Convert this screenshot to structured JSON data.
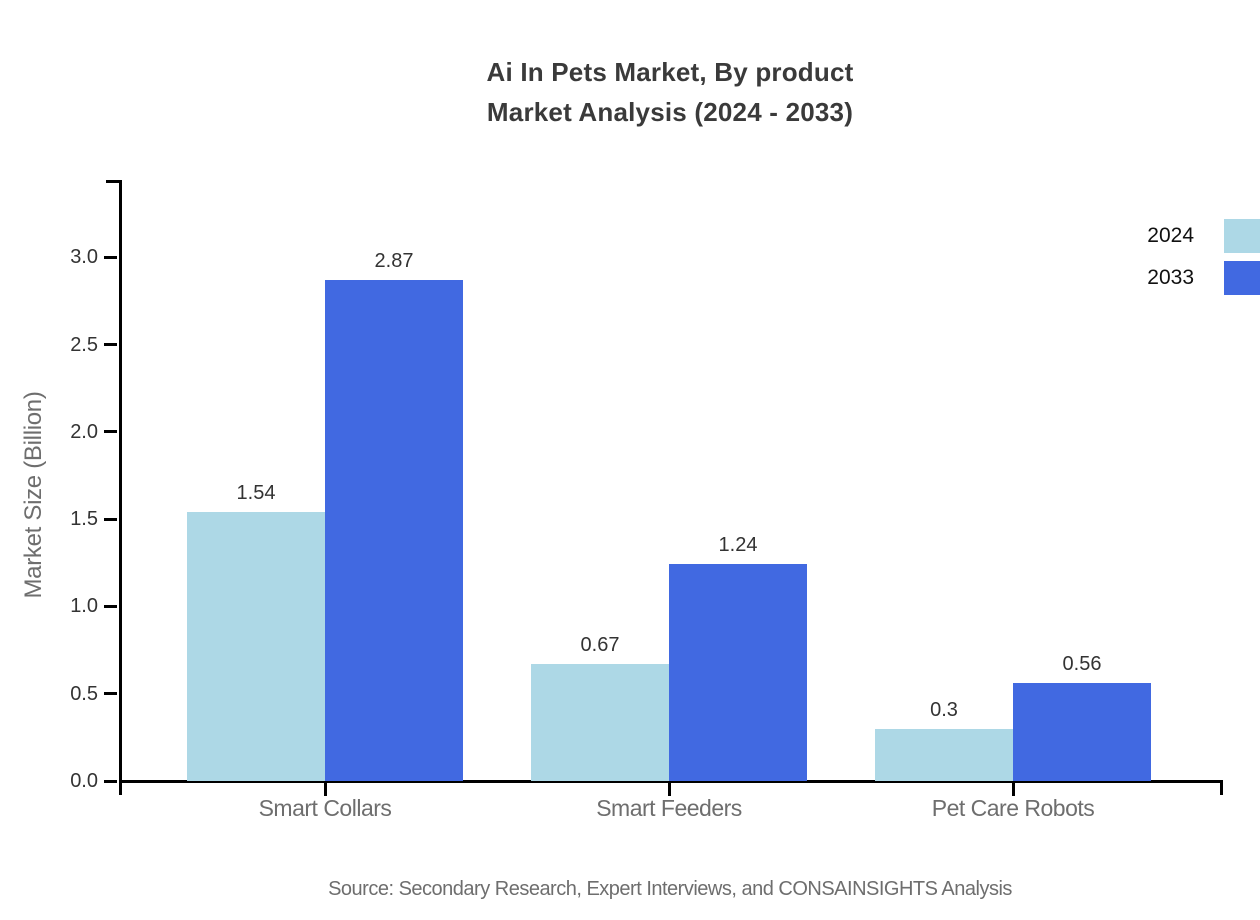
{
  "title": {
    "line1": "Ai In Pets Market, By product",
    "line2": "Market Analysis (2024 - 2033)"
  },
  "source": "Source: Secondary Research, Expert Interviews, and CONSAINSIGHTS Analysis",
  "colors": {
    "series_2024": "#ADD8E6",
    "series_2033": "#4169E1",
    "title_text": "#3A3A3A",
    "tick_text": "#333333",
    "muted_text": "#6E6E6E",
    "axis_line": "#000000",
    "background": "#FFFFFF"
  },
  "legend": {
    "items": [
      {
        "label": "2024",
        "color": "#ADD8E6"
      },
      {
        "label": "2033",
        "color": "#4169E1"
      }
    ]
  },
  "chart_data": {
    "type": "bar",
    "title": "Ai In Pets Market, By product Market Analysis (2024 - 2033)",
    "categories": [
      "Smart Collars",
      "Smart Feeders",
      "Pet Care Robots"
    ],
    "series": [
      {
        "name": "2024",
        "color": "#ADD8E6",
        "values": [
          1.54,
          0.67,
          0.3
        ]
      },
      {
        "name": "2033",
        "color": "#4169E1",
        "values": [
          2.87,
          1.24,
          0.56
        ]
      }
    ],
    "xlabel": "",
    "ylabel": "Market Size (Billion)",
    "ylim": [
      0,
      3.44
    ],
    "yticks": [
      "0.0",
      "0.5",
      "1.0",
      "1.5",
      "2.0",
      "2.5",
      "3.0"
    ],
    "grid": false,
    "legend_position": "upper-right",
    "value_labels_shown": true
  }
}
